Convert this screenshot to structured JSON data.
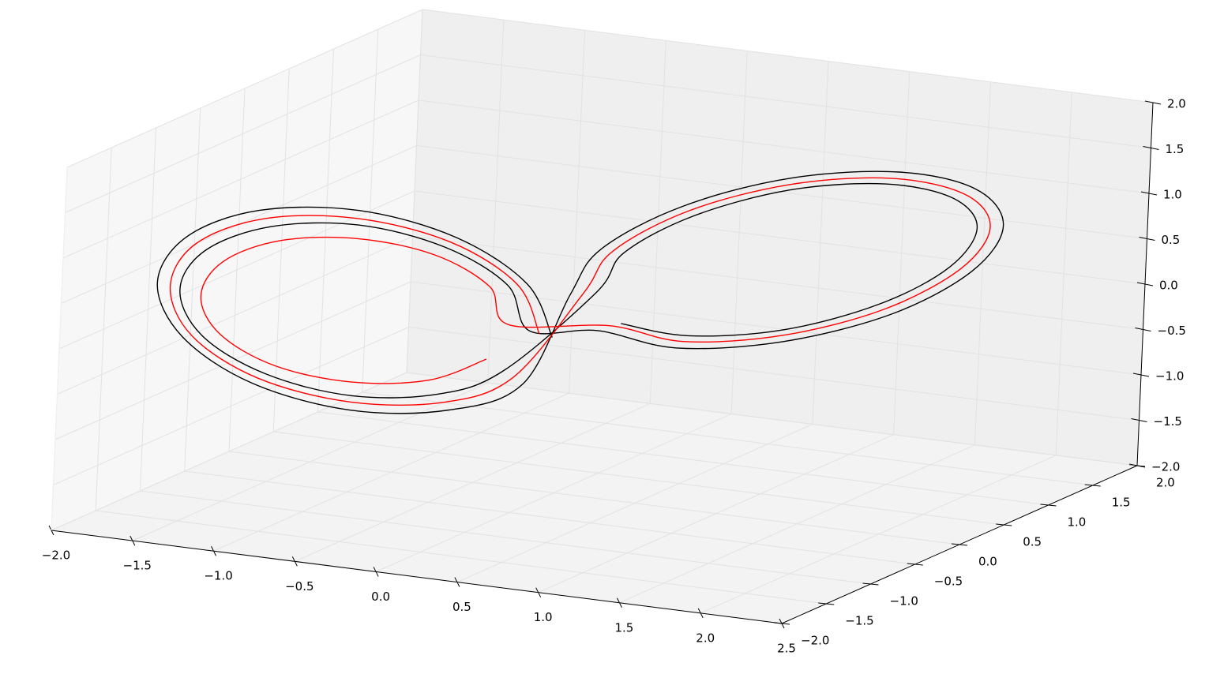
{
  "chart_data": {
    "type": "line3d",
    "xlim": [
      -2,
      2.5
    ],
    "ylim": [
      -2,
      2
    ],
    "zlim": [
      -2,
      2
    ],
    "xticks": [
      {
        "value": -2,
        "label": "−2.0"
      },
      {
        "value": -1.5,
        "label": "−1.5"
      },
      {
        "value": -1,
        "label": "−1.0"
      },
      {
        "value": -0.5,
        "label": "−0.5"
      },
      {
        "value": 0,
        "label": "0.0"
      },
      {
        "value": 0.5,
        "label": "0.5"
      },
      {
        "value": 1,
        "label": "1.0"
      },
      {
        "value": 1.5,
        "label": "1.5"
      },
      {
        "value": 2,
        "label": "2.0"
      },
      {
        "value": 2.5,
        "label": "2.5"
      }
    ],
    "yticks": [
      {
        "value": -2,
        "label": "−2.0"
      },
      {
        "value": -1.5,
        "label": "−1.5"
      },
      {
        "value": -1,
        "label": "−1.0"
      },
      {
        "value": -0.5,
        "label": "−0.5"
      },
      {
        "value": 0,
        "label": "0.0"
      },
      {
        "value": 0.5,
        "label": "0.5"
      },
      {
        "value": 1,
        "label": "1.0"
      },
      {
        "value": 1.5,
        "label": "1.5"
      },
      {
        "value": 2,
        "label": "2.0"
      }
    ],
    "zticks": [
      {
        "value": -2,
        "label": "−2.0"
      },
      {
        "value": -1.5,
        "label": "−1.5"
      },
      {
        "value": -1,
        "label": "−1.0"
      },
      {
        "value": -0.5,
        "label": "−0.5"
      },
      {
        "value": 0,
        "label": "0.0"
      },
      {
        "value": 0.5,
        "label": "0.5"
      },
      {
        "value": 1,
        "label": "1.0"
      },
      {
        "value": 1.5,
        "label": "1.5"
      },
      {
        "value": 2,
        "label": "2.0"
      }
    ],
    "grid": true,
    "series": [
      {
        "color": "#000000",
        "x": [
          -0.05,
          -0.18,
          -0.53,
          -1.0,
          -1.48,
          -1.82,
          -1.95,
          -1.82,
          -1.48,
          -1.0,
          -0.53,
          -0.18,
          0.05,
          0.19,
          0.58,
          1.1,
          1.63,
          2.01,
          2.15,
          2.01,
          1.63,
          1.1,
          0.58,
          0.19,
          -0.19,
          -0.3,
          -0.6,
          -1.0,
          -1.4,
          -1.7,
          -1.81,
          -1.7,
          -1.4,
          -1.0,
          -0.6,
          -0.3,
          0.21,
          0.33,
          0.65,
          1.1,
          1.55,
          1.87,
          1.99,
          1.87,
          1.55,
          1.1,
          0.65,
          0.33
        ],
        "y": [
          0,
          -0.07,
          -0.25,
          -0.5,
          -0.75,
          -0.93,
          -1.0,
          -0.93,
          -0.75,
          -0.5,
          -0.25,
          -0.07,
          0,
          0.07,
          0.25,
          0.5,
          0.75,
          0.93,
          1.0,
          0.93,
          0.75,
          0.5,
          0.25,
          0.07,
          0,
          -0.07,
          -0.25,
          -0.5,
          -0.75,
          -0.93,
          -1.0,
          -0.93,
          -0.75,
          -0.5,
          -0.25,
          -0.07,
          0,
          0.07,
          0.25,
          0.5,
          0.75,
          0.93,
          1.0,
          0.93,
          0.75,
          0.5,
          0.25,
          0.07
        ],
        "z": [
          -0.3,
          0.29,
          0.8,
          1.1,
          1.1,
          0.81,
          0.3,
          -0.29,
          -0.8,
          -1.1,
          -1.1,
          -0.81,
          0.2,
          0.7,
          1.18,
          1.5,
          1.58,
          1.4,
          1.0,
          0.5,
          0.02,
          -0.3,
          -0.38,
          -0.2,
          -0.26,
          0.25,
          0.68,
          0.94,
          0.94,
          0.69,
          0.26,
          -0.25,
          -0.68,
          -0.94,
          -0.94,
          -0.69,
          0.26,
          0.69,
          1.09,
          1.37,
          1.43,
          1.27,
          0.94,
          0.51,
          0.11,
          -0.17,
          -0.23,
          -0.09
        ]
      },
      {
        "color": "#ff0000",
        "x": [
          -0.13,
          -0.24,
          -0.56,
          -1.0,
          -1.44,
          -1.76,
          -1.87,
          -1.76,
          -1.44,
          -1.0,
          -0.56,
          -0.24,
          0.13,
          0.26,
          0.62,
          1.1,
          1.58,
          1.94,
          2.07,
          1.94,
          1.58,
          1.1,
          0.62,
          0.26,
          -0.32,
          -0.41,
          -0.66,
          -1.0,
          -1.34,
          -1.59,
          -1.68,
          -1.59,
          -1.34,
          -1.0,
          -0.66,
          -0.41
        ],
        "y": [
          0,
          -0.07,
          -0.25,
          -0.5,
          -0.75,
          -0.93,
          -1.0,
          -0.93,
          -0.75,
          -0.5,
          -0.25,
          -0.07,
          0,
          0.07,
          0.25,
          0.5,
          0.75,
          0.93,
          1.0,
          0.93,
          0.75,
          0.5,
          0.25,
          0.07,
          0,
          -0.07,
          -0.25,
          -0.5,
          -0.75,
          -0.93,
          -1.0,
          -0.93,
          -0.75,
          -0.5,
          -0.25,
          -0.07
        ],
        "z": [
          -0.28,
          0.27,
          0.74,
          1.01,
          1.02,
          0.75,
          0.28,
          -0.27,
          -0.74,
          -1.01,
          -1.02,
          -0.75,
          0.23,
          0.69,
          1.14,
          1.43,
          1.5,
          1.33,
          0.97,
          0.51,
          0.06,
          -0.23,
          -0.3,
          -0.13,
          -0.22,
          0.21,
          0.58,
          0.79,
          0.8,
          0.59,
          0.22,
          -0.21,
          -0.58,
          -0.79,
          -0.8,
          -0.59
        ]
      }
    ]
  }
}
